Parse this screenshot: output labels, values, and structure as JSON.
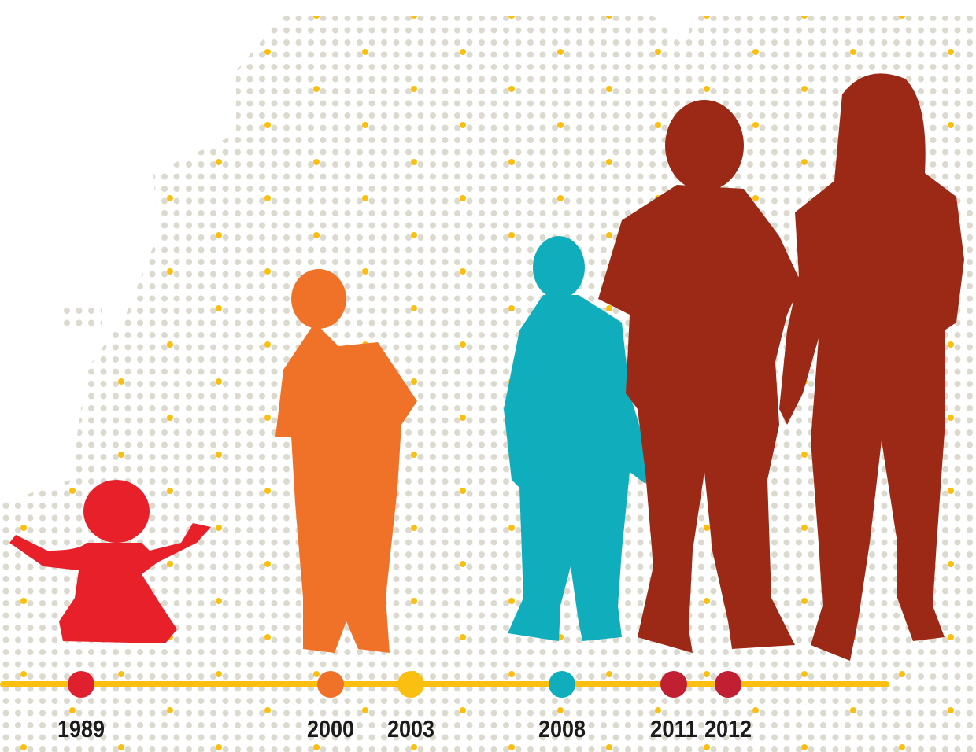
{
  "timeline": {
    "events": [
      {
        "year": "1989",
        "color": "#e0202e"
      },
      {
        "year": "2000",
        "color": "#f07228"
      },
      {
        "year": "2003",
        "color": "#fbbf12"
      },
      {
        "year": "2008",
        "color": "#10aebd"
      },
      {
        "year": "2011",
        "color": "#c12032"
      },
      {
        "year": "2012",
        "color": "#c12032"
      }
    ]
  }
}
